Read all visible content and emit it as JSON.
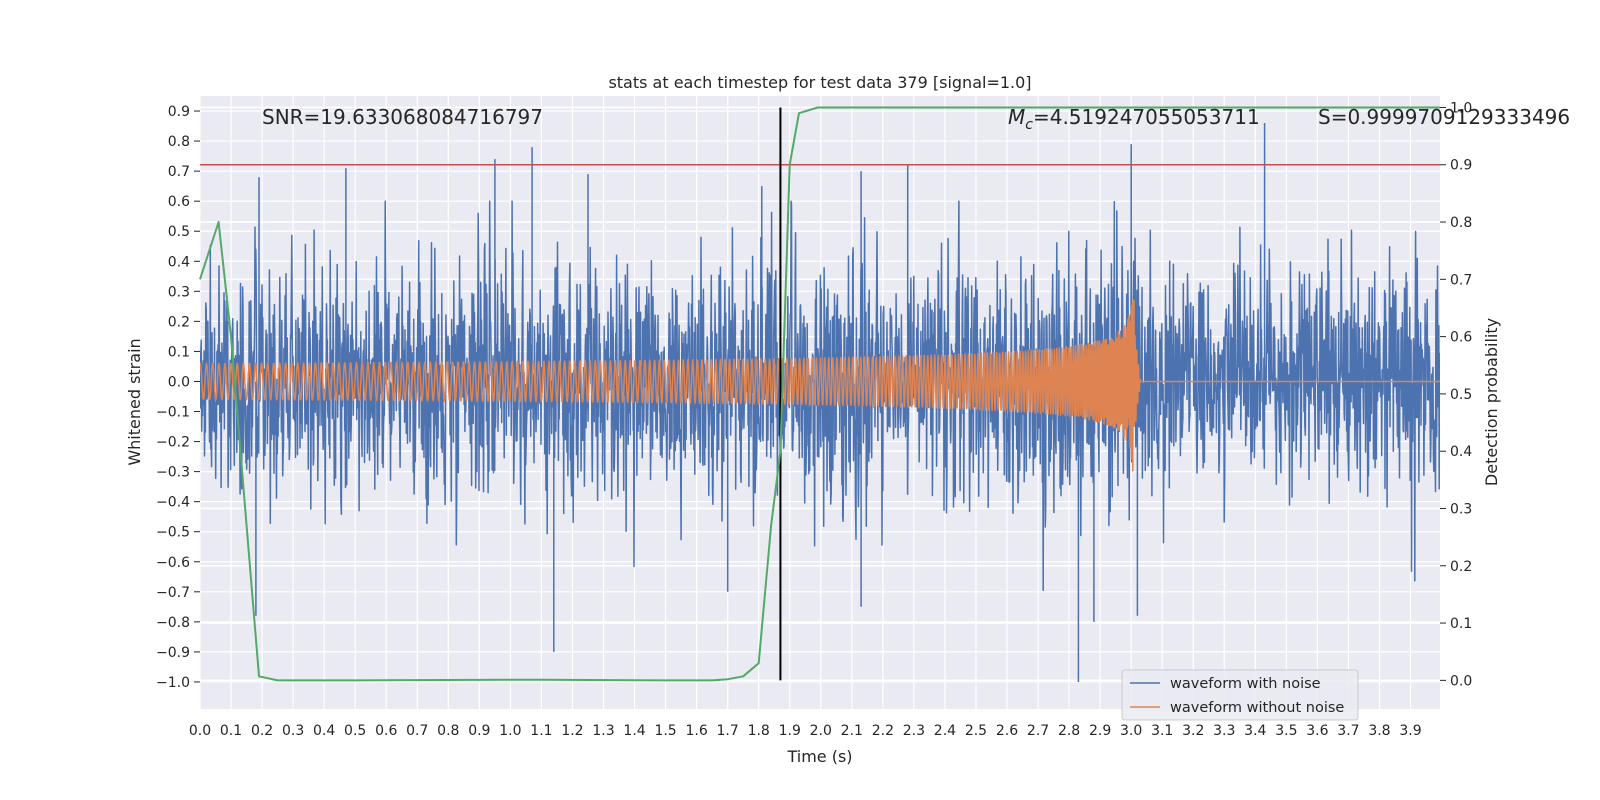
{
  "chart_data": {
    "type": "line",
    "title": "stats at each timestep for test data 379 [signal=1.0]",
    "xlabel": "Time (s)",
    "ylabel": "Whitened strain",
    "y2label": "Detection probability",
    "xlim": [
      0.0,
      3.995
    ],
    "ylim": [
      -1.09,
      0.95
    ],
    "y2lim": [
      -0.05,
      1.02
    ],
    "xticks": [
      "0.0",
      "0.1",
      "0.2",
      "0.3",
      "0.4",
      "0.5",
      "0.6",
      "0.7",
      "0.8",
      "0.9",
      "1.0",
      "1.1",
      "1.2",
      "1.3",
      "1.4",
      "1.5",
      "1.6",
      "1.7",
      "1.8",
      "1.9",
      "2.0",
      "2.1",
      "2.2",
      "2.3",
      "2.4",
      "2.5",
      "2.6",
      "2.7",
      "2.8",
      "2.9",
      "3.0",
      "3.1",
      "3.2",
      "3.3",
      "3.4",
      "3.5",
      "3.6",
      "3.7",
      "3.8",
      "3.9"
    ],
    "yticks": [
      "0.9",
      "0.8",
      "0.7",
      "0.6",
      "0.5",
      "0.4",
      "0.3",
      "0.2",
      "0.1",
      "0.0",
      "−0.1",
      "−0.2",
      "−0.3",
      "−0.4",
      "−0.5",
      "−0.6",
      "−0.7",
      "−0.8",
      "−0.9",
      "−1.0"
    ],
    "y2ticks": [
      "1.0",
      "0.9",
      "0.8",
      "0.7",
      "0.6",
      "0.5",
      "0.4",
      "0.3",
      "0.2",
      "0.1",
      "0.0"
    ],
    "grid": true,
    "legend_position": "bottom-right",
    "annotations": {
      "snr": "SNR=19.633068084716797",
      "mc_symbol": "M",
      "mc_sub": "c",
      "mc_value": "=4.519247055053711",
      "s": "S=0.9999709129333496"
    },
    "threshold": {
      "axis": "y2",
      "value": 0.9,
      "color": "#c44e52"
    },
    "marker_time": 1.87,
    "series": [
      {
        "name": "waveform with noise",
        "color": "#4c72b0",
        "axis": "y",
        "kind": "noise",
        "std": 0.19,
        "peaks": [
          [
            0.19,
            0.68
          ],
          [
            0.47,
            0.71
          ],
          [
            0.95,
            0.74
          ],
          [
            1.07,
            0.78
          ],
          [
            1.25,
            0.69
          ],
          [
            1.81,
            0.65
          ],
          [
            2.13,
            0.7
          ],
          [
            2.28,
            0.72
          ],
          [
            3.0,
            0.79
          ],
          [
            3.43,
            0.86
          ],
          [
            0.18,
            -0.78
          ],
          [
            1.14,
            -0.9
          ],
          [
            2.83,
            -1.0
          ],
          [
            3.02,
            -0.78
          ],
          [
            2.88,
            -0.8
          ],
          [
            2.13,
            -0.75
          ],
          [
            1.7,
            -0.7
          ]
        ]
      },
      {
        "name": "waveform without noise",
        "color": "#dd8452",
        "axis": "y",
        "kind": "chirp",
        "t_merge": 3.01,
        "amp0": 0.06,
        "peak": 0.45
      },
      {
        "name": "",
        "color": "#55a868",
        "axis": "y2",
        "kind": "probability",
        "x": [
          0.0,
          0.06,
          0.1,
          0.19,
          0.25,
          0.5,
          1.0,
          1.1,
          1.5,
          1.65,
          1.7,
          1.75,
          1.8,
          1.84,
          1.87,
          1.9,
          1.93,
          1.99,
          2.5,
          3.0,
          3.5,
          3.995
        ],
        "values": [
          0.7,
          0.8,
          0.6,
          0.007,
          0.0,
          0.0,
          0.001,
          0.001,
          0.0,
          0.0,
          0.002,
          0.007,
          0.03,
          0.27,
          0.4,
          0.9,
          0.99,
          1.0,
          1.0,
          1.0,
          1.0,
          1.0
        ]
      }
    ]
  }
}
